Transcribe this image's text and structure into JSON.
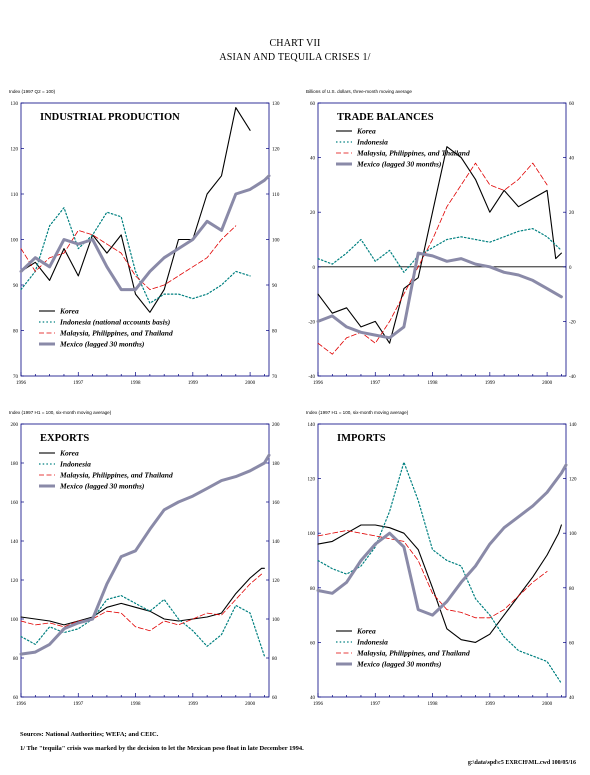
{
  "chart_title": "CHART VII",
  "chart_subtitle": "ASIAN AND TEQUILA CRISES 1/",
  "footer": {
    "sources": "Sources:  National Authorities; WEFA; and CEIC.",
    "note": "1/ The \"tequila\" crisis was marked by the decision to let the Mexican peso float in late December 1994.",
    "code": "g:\\data\\spd\\c5  EXRCH\\ML.cwd 100/05/16"
  },
  "chart_data": [
    {
      "type": "line",
      "title": "INDUSTRIAL PRODUCTION",
      "unit_label": "Index (1997 Q2 = 100)",
      "ylim": [
        70,
        130
      ],
      "yticks": [
        70,
        80,
        90,
        100,
        110,
        120,
        130
      ],
      "xlim": [
        1996,
        2000.33
      ],
      "xticks": [
        "1996",
        "1997",
        "1998",
        "1999",
        "2000"
      ],
      "series": [
        {
          "name": "Korea",
          "color": "#000000",
          "style": "solid",
          "width": 1.1,
          "x": [
            1996,
            1996.25,
            1996.5,
            1996.75,
            1997,
            1997.25,
            1997.5,
            1997.75,
            1998,
            1998.25,
            1998.5,
            1998.75,
            1999,
            1999.25,
            1999.5,
            1999.75,
            2000,
            2000.25
          ],
          "y": [
            93,
            95,
            91,
            98,
            92,
            101,
            97,
            101,
            88,
            84,
            89,
            100,
            100,
            110,
            114,
            129,
            124,
            null
          ]
        },
        {
          "name": "Indonesia (national accounts basis)",
          "color": "#008080",
          "style": "dotted",
          "width": 1.2,
          "x": [
            1996,
            1996.25,
            1996.5,
            1996.75,
            1997,
            1997.25,
            1997.5,
            1997.75,
            1998,
            1998.25,
            1998.5,
            1998.75,
            1999,
            1999.25,
            1999.5,
            1999.75,
            2000
          ],
          "y": [
            89,
            93,
            103,
            107,
            98,
            101,
            106,
            105,
            93,
            86,
            88,
            88,
            87,
            88,
            90,
            93,
            92
          ]
        },
        {
          "name": "Malaysia, Philippines, and Thailand",
          "color": "#e00000",
          "style": "dash",
          "width": 0.8,
          "x": [
            1996,
            1996.25,
            1996.5,
            1996.75,
            1997,
            1997.25,
            1997.5,
            1997.75,
            1998,
            1998.25,
            1998.5,
            1998.75,
            1999,
            1999.25,
            1999.5,
            1999.75
          ],
          "y": [
            98,
            93,
            96,
            97,
            102,
            101,
            99,
            97,
            92,
            89,
            90,
            92,
            94,
            96,
            100,
            103
          ]
        },
        {
          "name": "Mexico (lagged 30 months)",
          "color": "#8a8aa8",
          "style": "solid",
          "width": 3,
          "x": [
            1996,
            1996.25,
            1996.5,
            1996.75,
            1997,
            1997.25,
            1997.5,
            1997.75,
            1998,
            1998.25,
            1998.5,
            1998.75,
            1999,
            1999.25,
            1999.5,
            1999.75,
            2000,
            2000.25,
            2000.33
          ],
          "y": [
            93,
            96,
            94,
            100,
            99,
            100,
            94,
            89,
            89,
            93,
            96,
            98,
            100,
            104,
            102,
            110,
            111,
            113,
            114
          ]
        }
      ]
    },
    {
      "type": "line",
      "title": "TRADE BALANCES",
      "unit_label": "Billions of U.S. dollars, three-month moving average",
      "ylim": [
        -40,
        60
      ],
      "yticks": [
        -40,
        -20,
        0,
        20,
        40,
        60
      ],
      "xlim": [
        1996,
        2000.33
      ],
      "xticks": [
        "1996",
        "1997",
        "1998",
        "1999",
        "2000"
      ],
      "series": [
        {
          "name": "Korea",
          "color": "#000000",
          "style": "solid",
          "width": 1.1,
          "x": [
            1996,
            1996.25,
            1996.5,
            1996.75,
            1997,
            1997.25,
            1997.5,
            1997.75,
            1998,
            1998.25,
            1998.5,
            1998.75,
            1999,
            1999.25,
            1999.5,
            1999.75,
            2000,
            2000.15,
            2000.25
          ],
          "y": [
            -10,
            -17,
            -15,
            -22,
            -20,
            -28,
            -8,
            -4,
            20,
            44,
            40,
            32,
            20,
            28,
            22,
            25,
            28,
            3,
            5
          ]
        },
        {
          "name": "Indonesia",
          "color": "#008080",
          "style": "dotted",
          "width": 1.2,
          "x": [
            1996,
            1996.25,
            1996.5,
            1996.75,
            1997,
            1997.25,
            1997.5,
            1997.75,
            1998,
            1998.25,
            1998.5,
            1998.75,
            1999,
            1999.25,
            1999.5,
            1999.75,
            2000,
            2000.25
          ],
          "y": [
            3,
            1,
            5,
            10,
            2,
            6,
            -2,
            4,
            7,
            10,
            11,
            10,
            9,
            11,
            13,
            14,
            11,
            6
          ]
        },
        {
          "name": "Malaysia, Philippines, and Thailand",
          "color": "#e00000",
          "style": "dash",
          "width": 0.8,
          "x": [
            1996,
            1996.25,
            1996.5,
            1996.75,
            1997,
            1997.25,
            1997.5,
            1997.75,
            1998,
            1998.25,
            1998.5,
            1998.75,
            1999,
            1999.25,
            1999.5,
            1999.75,
            2000
          ],
          "y": [
            -28,
            -32,
            -26,
            -24,
            -28,
            -20,
            -10,
            0,
            10,
            22,
            30,
            38,
            30,
            28,
            32,
            38,
            30
          ]
        },
        {
          "name": "Mexico (lagged 30 months)",
          "color": "#8a8aa8",
          "style": "solid",
          "width": 3,
          "x": [
            1996,
            1996.25,
            1996.5,
            1996.75,
            1997,
            1997.25,
            1997.5,
            1997.75,
            1998,
            1998.25,
            1998.5,
            1998.75,
            1999,
            1999.25,
            1999.5,
            1999.75,
            2000,
            2000.25
          ],
          "y": [
            -20,
            -18,
            -22,
            -24,
            -25,
            -26,
            -22,
            5,
            4,
            2,
            3,
            1,
            0,
            -2,
            -3,
            -5,
            -8,
            -11
          ]
        }
      ]
    },
    {
      "type": "line",
      "title": "EXPORTS",
      "unit_label": "Index (1997 H1 = 100, six-month moving average)",
      "ylim": [
        60,
        200
      ],
      "yticks": [
        60,
        80,
        100,
        120,
        140,
        160,
        180,
        200
      ],
      "xlim": [
        1996,
        2000.33
      ],
      "xticks": [
        "1996",
        "1997",
        "1998",
        "1999",
        "2000"
      ],
      "series": [
        {
          "name": "Korea",
          "color": "#000000",
          "style": "solid",
          "width": 1.1,
          "x": [
            1996,
            1996.25,
            1996.5,
            1996.75,
            1997,
            1997.25,
            1997.5,
            1997.75,
            1998,
            1998.25,
            1998.5,
            1998.75,
            1999,
            1999.25,
            1999.5,
            1999.75,
            2000,
            2000.2,
            2000.25
          ],
          "y": [
            101,
            100,
            99,
            97,
            99,
            101,
            106,
            108,
            106,
            104,
            100,
            99,
            100,
            101,
            103,
            113,
            121,
            126,
            126
          ]
        },
        {
          "name": "Indonesia",
          "color": "#008080",
          "style": "dotted",
          "width": 1.2,
          "x": [
            1996,
            1996.25,
            1996.5,
            1996.75,
            1997,
            1997.25,
            1997.5,
            1997.75,
            1998,
            1998.25,
            1998.5,
            1998.75,
            1999,
            1999.25,
            1999.5,
            1999.75,
            2000,
            2000.25
          ],
          "y": [
            91,
            87,
            96,
            93,
            95,
            100,
            110,
            112,
            108,
            104,
            110,
            100,
            94,
            86,
            92,
            107,
            103,
            81
          ]
        },
        {
          "name": "Malaysia, Philippines, and Thailand",
          "color": "#e00000",
          "style": "dash",
          "width": 0.8,
          "x": [
            1996,
            1996.25,
            1996.5,
            1996.75,
            1997,
            1997.25,
            1997.5,
            1997.75,
            1998,
            1998.25,
            1998.5,
            1998.75,
            1999,
            1999.25,
            1999.5,
            1999.75,
            2000,
            2000.2
          ],
          "y": [
            99,
            97,
            98,
            96,
            99,
            100,
            104,
            103,
            96,
            94,
            99,
            97,
            100,
            103,
            102,
            110,
            118,
            123
          ]
        },
        {
          "name": "Mexico (lagged 30 months)",
          "color": "#8a8aa8",
          "style": "solid",
          "width": 3,
          "x": [
            1996,
            1996.25,
            1996.5,
            1996.75,
            1997,
            1997.25,
            1997.5,
            1997.75,
            1998,
            1998.25,
            1998.5,
            1998.75,
            1999,
            1999.25,
            1999.5,
            1999.75,
            2000,
            2000.25,
            2000.33
          ],
          "y": [
            82,
            83,
            87,
            95,
            98,
            100,
            118,
            132,
            135,
            146,
            156,
            160,
            163,
            167,
            171,
            173,
            176,
            180,
            184
          ]
        }
      ]
    },
    {
      "type": "line",
      "title": "IMPORTS",
      "unit_label": "Index (1997 H1 = 100, six-month moving average)",
      "ylim": [
        40,
        140
      ],
      "yticks": [
        40,
        60,
        80,
        100,
        120,
        140
      ],
      "xlim": [
        1996,
        2000.33
      ],
      "xticks": [
        "1996",
        "1997",
        "1998",
        "1999",
        "2000"
      ],
      "series": [
        {
          "name": "Korea",
          "color": "#000000",
          "style": "solid",
          "width": 1.1,
          "x": [
            1996,
            1996.25,
            1996.5,
            1996.75,
            1997,
            1997.25,
            1997.5,
            1997.75,
            1998,
            1998.25,
            1998.5,
            1998.75,
            1999,
            1999.25,
            1999.5,
            1999.75,
            2000,
            2000.2,
            2000.25
          ],
          "y": [
            96,
            97,
            100,
            103,
            103,
            102,
            100,
            94,
            80,
            65,
            61,
            60,
            63,
            70,
            77,
            84,
            92,
            100,
            103
          ]
        },
        {
          "name": "Indonesia",
          "color": "#008080",
          "style": "dotted",
          "width": 1.2,
          "x": [
            1996,
            1996.25,
            1996.5,
            1996.75,
            1997,
            1997.25,
            1997.5,
            1997.75,
            1998,
            1998.25,
            1998.5,
            1998.75,
            1999,
            1999.25,
            1999.5,
            1999.75,
            2000,
            2000.25
          ],
          "y": [
            90,
            87,
            85,
            88,
            95,
            108,
            126,
            112,
            94,
            90,
            88,
            76,
            70,
            62,
            57,
            55,
            53,
            45
          ]
        },
        {
          "name": "Malaysia, Philippines, and Thailand",
          "color": "#e00000",
          "style": "dash",
          "width": 0.8,
          "x": [
            1996,
            1996.25,
            1996.5,
            1996.75,
            1997,
            1997.25,
            1997.5,
            1997.75,
            1998,
            1998.25,
            1998.5,
            1998.75,
            1999,
            1999.25,
            1999.5,
            1999.75,
            2000
          ],
          "y": [
            99,
            100,
            101,
            100,
            99,
            98,
            97,
            90,
            78,
            72,
            71,
            69,
            69,
            72,
            77,
            82,
            86
          ]
        },
        {
          "name": "Mexico (lagged 30 months)",
          "color": "#8a8aa8",
          "style": "solid",
          "width": 3,
          "x": [
            1996,
            1996.25,
            1996.5,
            1996.75,
            1997,
            1997.25,
            1997.5,
            1997.75,
            1998,
            1998.25,
            1998.5,
            1998.75,
            1999,
            1999.25,
            1999.5,
            1999.75,
            2000,
            2000.25,
            2000.33
          ],
          "y": [
            79,
            78,
            82,
            90,
            96,
            100,
            95,
            72,
            70,
            75,
            82,
            88,
            96,
            102,
            106,
            110,
            115,
            122,
            125
          ]
        }
      ]
    }
  ]
}
